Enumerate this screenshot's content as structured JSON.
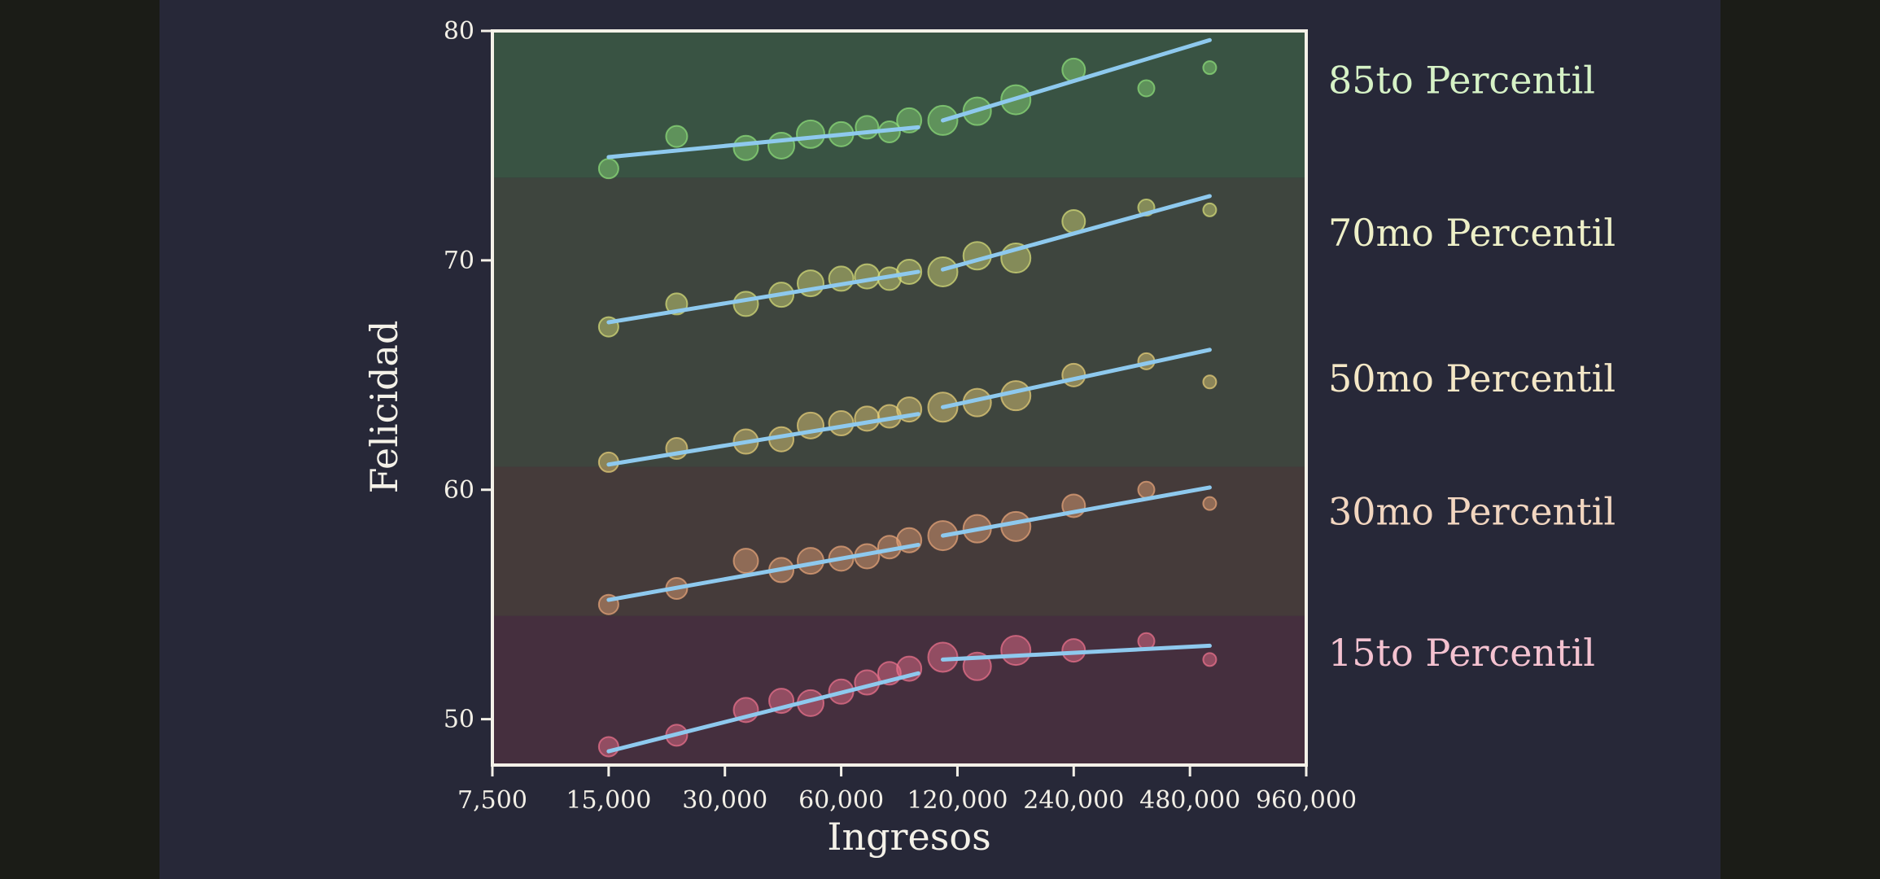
{
  "chart_data": {
    "type": "scatter",
    "xlabel": "Ingresos",
    "ylabel": "Felicidad",
    "x_scale": "log",
    "xlim": [
      7500,
      960000
    ],
    "ylim": [
      48,
      80
    ],
    "x_ticks": [
      7500,
      15000,
      30000,
      60000,
      120000,
      240000,
      480000,
      960000
    ],
    "x_tick_labels": [
      "7,500",
      "15,000",
      "30,000",
      "60,000",
      "120,000",
      "240,000",
      "480,000",
      "960,000"
    ],
    "y_ticks": [
      50,
      60,
      70,
      80
    ],
    "y_tick_labels": [
      "50",
      "60",
      "70",
      "80"
    ],
    "grid": false,
    "fit_line_color": "#8ec9ee",
    "series": [
      {
        "name": "85to Percentil",
        "color": "#8fe07a",
        "label_color": "#d6f2c6",
        "band": [
          73.6,
          80
        ],
        "band_color": "#3d5b45",
        "points": [
          [
            15000,
            74.0
          ],
          [
            22500,
            75.4
          ],
          [
            34000,
            74.9
          ],
          [
            42000,
            75.0
          ],
          [
            50000,
            75.5
          ],
          [
            60000,
            75.5
          ],
          [
            70000,
            75.8
          ],
          [
            80000,
            75.6
          ],
          [
            90000,
            76.1
          ],
          [
            110000,
            76.1
          ],
          [
            135000,
            76.5
          ],
          [
            170000,
            77.0
          ],
          [
            240000,
            78.3
          ],
          [
            370000,
            77.5
          ],
          [
            540000,
            78.4
          ]
        ],
        "sizes": [
          12,
          13,
          15,
          16,
          17,
          15,
          14,
          13,
          15,
          18,
          17,
          18,
          14,
          10,
          8
        ],
        "fit": [
          [
            [
              15000,
              74.5
            ],
            [
              95000,
              75.8
            ]
          ],
          [
            [
              110000,
              76.1
            ],
            [
              540000,
              79.6
            ]
          ]
        ]
      },
      {
        "name": "70mo Percentil",
        "color": "#d9e07a",
        "label_color": "#eef0c8",
        "band": [
          61.0,
          73.6
        ],
        "band_color": "#434a3f",
        "points": [
          [
            15000,
            67.1
          ],
          [
            22500,
            68.1
          ],
          [
            34000,
            68.1
          ],
          [
            42000,
            68.5
          ],
          [
            50000,
            69.0
          ],
          [
            60000,
            69.2
          ],
          [
            70000,
            69.3
          ],
          [
            80000,
            69.2
          ],
          [
            90000,
            69.5
          ],
          [
            110000,
            69.5
          ],
          [
            135000,
            70.2
          ],
          [
            170000,
            70.1
          ],
          [
            240000,
            71.7
          ],
          [
            370000,
            72.3
          ],
          [
            540000,
            72.2
          ]
        ],
        "sizes": [
          12,
          13,
          15,
          15,
          16,
          15,
          15,
          14,
          15,
          18,
          17,
          18,
          14,
          10,
          8
        ],
        "fit": [
          [
            [
              15000,
              67.3
            ],
            [
              95000,
              69.5
            ]
          ],
          [
            [
              110000,
              69.6
            ],
            [
              540000,
              72.8
            ]
          ]
        ]
      },
      {
        "name": "50mo Percentil",
        "color": "#ead27a",
        "label_color": "#f4e7c6",
        "band": [
          61.0,
          73.6
        ],
        "band_color": "#434a3f",
        "points": [
          [
            15000,
            61.2
          ],
          [
            22500,
            61.8
          ],
          [
            34000,
            62.1
          ],
          [
            42000,
            62.2
          ],
          [
            50000,
            62.8
          ],
          [
            60000,
            62.9
          ],
          [
            70000,
            63.1
          ],
          [
            80000,
            63.2
          ],
          [
            90000,
            63.5
          ],
          [
            110000,
            63.6
          ],
          [
            135000,
            63.8
          ],
          [
            170000,
            64.1
          ],
          [
            240000,
            65.0
          ],
          [
            370000,
            65.6
          ],
          [
            540000,
            64.7
          ]
        ],
        "sizes": [
          12,
          13,
          15,
          15,
          16,
          15,
          15,
          14,
          15,
          18,
          17,
          18,
          14,
          10,
          8
        ],
        "fit": [
          [
            [
              15000,
              61.1
            ],
            [
              95000,
              63.3
            ]
          ],
          [
            [
              110000,
              63.6
            ],
            [
              540000,
              66.1
            ]
          ]
        ]
      },
      {
        "name": "30mo Percentil",
        "color": "#e9a77a",
        "label_color": "#f2d6c0",
        "band": [
          54.5,
          61.0
        ],
        "band_color": "#4b3e3b",
        "points": [
          [
            15000,
            55.0
          ],
          [
            22500,
            55.7
          ],
          [
            34000,
            56.9
          ],
          [
            42000,
            56.5
          ],
          [
            50000,
            56.9
          ],
          [
            60000,
            57.0
          ],
          [
            70000,
            57.1
          ],
          [
            80000,
            57.5
          ],
          [
            90000,
            57.8
          ],
          [
            110000,
            58.0
          ],
          [
            135000,
            58.3
          ],
          [
            170000,
            58.4
          ],
          [
            240000,
            59.3
          ],
          [
            370000,
            60.0
          ],
          [
            540000,
            59.4
          ]
        ],
        "sizes": [
          12,
          13,
          15,
          15,
          16,
          15,
          15,
          14,
          15,
          18,
          17,
          18,
          14,
          10,
          8
        ],
        "fit": [
          [
            [
              15000,
              55.2
            ],
            [
              95000,
              57.6
            ]
          ],
          [
            [
              110000,
              58.0
            ],
            [
              540000,
              60.1
            ]
          ]
        ]
      },
      {
        "name": "15to Percentil",
        "color": "#f0748e",
        "label_color": "#f4c2d0",
        "band": [
          48,
          54.5
        ],
        "band_color": "#4b3040",
        "points": [
          [
            15000,
            48.8
          ],
          [
            22500,
            49.3
          ],
          [
            34000,
            50.4
          ],
          [
            42000,
            50.8
          ],
          [
            50000,
            50.7
          ],
          [
            60000,
            51.2
          ],
          [
            70000,
            51.6
          ],
          [
            80000,
            52.0
          ],
          [
            90000,
            52.2
          ],
          [
            110000,
            52.7
          ],
          [
            135000,
            52.3
          ],
          [
            170000,
            53.0
          ],
          [
            240000,
            53.0
          ],
          [
            370000,
            53.4
          ],
          [
            540000,
            52.6
          ]
        ],
        "sizes": [
          12,
          13,
          15,
          15,
          16,
          15,
          15,
          14,
          15,
          18,
          17,
          18,
          14,
          10,
          8
        ],
        "fit": [
          [
            [
              15000,
              48.6
            ],
            [
              95000,
              52.0
            ]
          ],
          [
            [
              110000,
              52.6
            ],
            [
              540000,
              53.2
            ]
          ]
        ]
      }
    ]
  }
}
